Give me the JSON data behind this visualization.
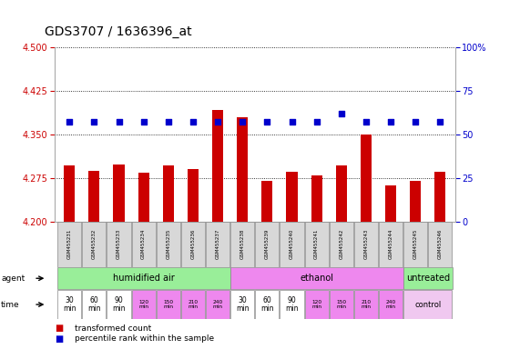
{
  "title": "GDS3707 / 1636396_at",
  "samples": [
    "GSM455231",
    "GSM455232",
    "GSM455233",
    "GSM455234",
    "GSM455235",
    "GSM455236",
    "GSM455237",
    "GSM455238",
    "GSM455239",
    "GSM455240",
    "GSM455241",
    "GSM455242",
    "GSM455243",
    "GSM455244",
    "GSM455245",
    "GSM455246"
  ],
  "red_values": [
    4.296,
    4.287,
    4.298,
    4.284,
    4.296,
    4.29,
    4.392,
    4.38,
    4.27,
    4.285,
    4.28,
    4.296,
    4.35,
    4.262,
    4.27,
    4.285
  ],
  "blue_pct": [
    57,
    57,
    57,
    57,
    57,
    57,
    57,
    57,
    57,
    57,
    57,
    62,
    57,
    57,
    57,
    57
  ],
  "ylim": [
    4.2,
    4.5
  ],
  "yticks": [
    4.2,
    4.275,
    4.35,
    4.425,
    4.5
  ],
  "y2lim": [
    0,
    100
  ],
  "y2ticks": [
    0,
    25,
    50,
    75,
    100
  ],
  "bar_color": "#cc0000",
  "dot_color": "#0000cc",
  "agent_groups": [
    {
      "label": "humidified air",
      "start": 0,
      "end": 7,
      "color": "#99ee99"
    },
    {
      "label": "ethanol",
      "start": 7,
      "end": 14,
      "color": "#ee88ee"
    },
    {
      "label": "untreated",
      "start": 14,
      "end": 16,
      "color": "#99ee99"
    }
  ],
  "time_data": [
    {
      "label": "30\nmin",
      "color": "#ffffff",
      "size": "large"
    },
    {
      "label": "60\nmin",
      "color": "#ffffff",
      "size": "large"
    },
    {
      "label": "90\nmin",
      "color": "#ffffff",
      "size": "large"
    },
    {
      "label": "120\nmin",
      "color": "#ee88ee",
      "size": "small"
    },
    {
      "label": "150\nmin",
      "color": "#ee88ee",
      "size": "small"
    },
    {
      "label": "210\nmin",
      "color": "#ee88ee",
      "size": "small"
    },
    {
      "label": "240\nmin",
      "color": "#ee88ee",
      "size": "small"
    },
    {
      "label": "30\nmin",
      "color": "#ffffff",
      "size": "large"
    },
    {
      "label": "60\nmin",
      "color": "#ffffff",
      "size": "large"
    },
    {
      "label": "90\nmin",
      "color": "#ffffff",
      "size": "large"
    },
    {
      "label": "120\nmin",
      "color": "#ee88ee",
      "size": "small"
    },
    {
      "label": "150\nmin",
      "color": "#ee88ee",
      "size": "small"
    },
    {
      "label": "210\nmin",
      "color": "#ee88ee",
      "size": "small"
    },
    {
      "label": "240\nmin",
      "color": "#ee88ee",
      "size": "small"
    }
  ],
  "control_color": "#f0c8f0",
  "background_color": "#ffffff",
  "title_fontsize": 10,
  "left_tick_color": "#cc0000",
  "right_tick_color": "#0000cc",
  "xlab_bg": "#d8d8d8",
  "xlab_border": "#888888"
}
